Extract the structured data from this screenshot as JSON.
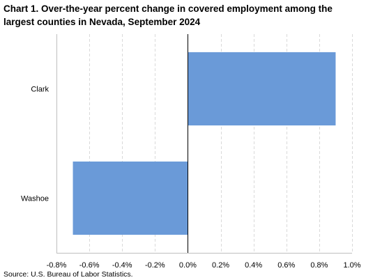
{
  "title": "Chart 1. Over-the-year percent change in covered employment among the largest counties in Nevada, September 2024",
  "source": "Source: U.S. Bureau of Labor Statistics.",
  "chart_data": {
    "type": "bar",
    "orientation": "horizontal",
    "title": "Chart 1. Over-the-year percent change in covered employment among the largest counties in Nevada, September 2024",
    "xlabel": "",
    "ylabel": "",
    "categories": [
      "Clark",
      "Washoe"
    ],
    "values": [
      0.9,
      -0.7
    ],
    "unit": "percent",
    "xlim": [
      -0.8,
      1.0
    ],
    "ticks": [
      -0.8,
      -0.6,
      -0.4,
      -0.2,
      0.0,
      0.2,
      0.4,
      0.6,
      0.8,
      1.0
    ],
    "tick_labels": [
      "-0.8%",
      "-0.6%",
      "-0.4%",
      "-0.2%",
      "0.0%",
      "0.2%",
      "0.4%",
      "0.6%",
      "0.8%",
      "1.0%"
    ],
    "grid": "vertical dashed",
    "legend": "none",
    "bar_color": "#6a9ad8",
    "zero_line_color": "#000000",
    "grid_color": "#d9d9d9",
    "axis_color": "#bfbfbf"
  }
}
